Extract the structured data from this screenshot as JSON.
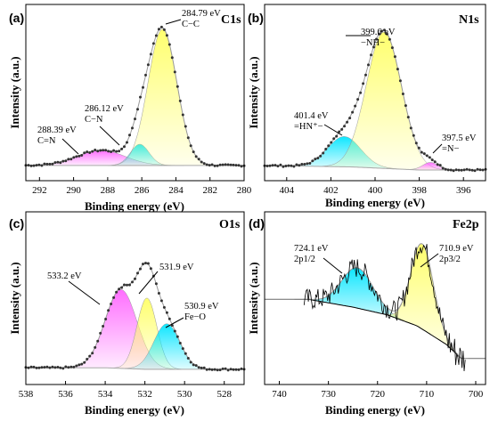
{
  "chart_data": [
    {
      "id": "c1s",
      "type": "area",
      "panel_label": "(a)",
      "element_label": "C1s",
      "xlabel": "Binding energy (eV)",
      "ylabel": "Intensity (a.u.)",
      "xlim": [
        292.8,
        280.0
      ],
      "x_reversed": true,
      "xticks": [
        292,
        290,
        288,
        286,
        284,
        282,
        280
      ],
      "ylim": [
        0,
        1.0
      ],
      "background": [
        [
          292.8,
          0.03
        ],
        [
          288,
          0.03
        ],
        [
          284,
          0.03
        ],
        [
          280,
          0.03
        ]
      ],
      "peaks": [
        {
          "center": 288.39,
          "amplitude": 0.1,
          "width": 1.4,
          "color": "#ff66ff"
        },
        {
          "center": 286.12,
          "amplitude": 0.14,
          "width": 0.55,
          "color": "#00e5ff"
        },
        {
          "center": 284.79,
          "amplitude": 0.9,
          "width": 0.85,
          "color": "#ffff66"
        }
      ],
      "annotations": [
        {
          "lines": [
            "284.79 eV",
            "C−C"
          ],
          "x": 284.79
        },
        {
          "lines": [
            "286.12 eV",
            "C−N"
          ],
          "x": 286.12
        },
        {
          "lines": [
            "288.39 eV",
            "C=N"
          ],
          "x": 288.39
        }
      ]
    },
    {
      "id": "n1s",
      "type": "area",
      "panel_label": "(b)",
      "element_label": "N1s",
      "xlabel": "Binding energy (eV)",
      "ylabel": "Intensity (a.u.)",
      "xlim": [
        405.0,
        395.0
      ],
      "x_reversed": true,
      "xticks": [
        404,
        402,
        400,
        398,
        396
      ],
      "ylim": [
        0,
        1.0
      ],
      "background": [
        [
          405,
          0.03
        ],
        [
          401,
          0.02
        ],
        [
          398,
          0.0
        ],
        [
          395,
          0.0
        ]
      ],
      "peaks": [
        {
          "center": 401.4,
          "amplitude": 0.2,
          "width": 0.75,
          "color": "#00e5ff"
        },
        {
          "center": 399.6,
          "amplitude": 0.9,
          "width": 0.8,
          "color": "#ffff66"
        },
        {
          "center": 397.5,
          "amplitude": 0.05,
          "width": 0.35,
          "color": "#ff66ff"
        }
      ],
      "annotations": [
        {
          "lines": [
            "399.6 eV",
            "−NH−"
          ],
          "x": 399.6
        },
        {
          "lines": [
            "401.4 eV",
            "=HN⁺−"
          ],
          "x": 401.4
        },
        {
          "lines": [
            "397.5 eV",
            "=N−"
          ],
          "x": 397.5
        }
      ]
    },
    {
      "id": "o1s",
      "type": "area",
      "panel_label": "(c)",
      "element_label": "O1s",
      "xlabel": "Binding energy (eV)",
      "ylabel": "Intensity (a.u.)",
      "xlim": [
        538.0,
        527.0
      ],
      "x_reversed": true,
      "xticks": [
        538,
        536,
        534,
        532,
        530,
        528
      ],
      "ylim": [
        0,
        1.0
      ],
      "background": [
        [
          538,
          0.04
        ],
        [
          534,
          0.04
        ],
        [
          532,
          0.03
        ],
        [
          527,
          0.03
        ]
      ],
      "peaks": [
        {
          "center": 533.2,
          "amplitude": 0.52,
          "width": 0.8,
          "color": "#ff66ff"
        },
        {
          "center": 531.9,
          "amplitude": 0.47,
          "width": 0.5,
          "color": "#ffff66"
        },
        {
          "center": 530.9,
          "amplitude": 0.3,
          "width": 0.65,
          "color": "#00e5ff"
        }
      ],
      "annotations": [
        {
          "lines": [
            "533.2 eV"
          ],
          "x": 533.2
        },
        {
          "lines": [
            "531.9 eV"
          ],
          "x": 531.9
        },
        {
          "lines": [
            "530.9 eV",
            "Fe−O"
          ],
          "x": 530.9
        }
      ]
    },
    {
      "id": "fe2p",
      "type": "area",
      "panel_label": "(d)",
      "element_label": "Fe2p",
      "xlabel": "Binding energy (eV)",
      "ylabel": "Intensity (a.u.)",
      "xlim": [
        743.0,
        698.0
      ],
      "x_reversed": true,
      "xticks": [
        740,
        730,
        720,
        710,
        700
      ],
      "ylim": [
        0,
        1.0
      ],
      "background": [
        [
          734,
          0.48
        ],
        [
          725,
          0.43
        ],
        [
          718,
          0.38
        ],
        [
          712,
          0.31
        ],
        [
          706,
          0.19
        ],
        [
          703,
          0.1
        ]
      ],
      "peaks": [
        {
          "center": 724.1,
          "amplitude": 0.26,
          "width": 3.2,
          "color": "#00e5ff"
        },
        {
          "center": 710.9,
          "amplitude": 0.55,
          "width": 2.3,
          "color": "#ffff66"
        }
      ],
      "annotations": [
        {
          "lines": [
            "724.1 eV",
            "2p1/2"
          ],
          "x": 724.1
        },
        {
          "lines": [
            "710.9 eV",
            "2p3/2"
          ],
          "x": 710.9
        }
      ]
    }
  ]
}
